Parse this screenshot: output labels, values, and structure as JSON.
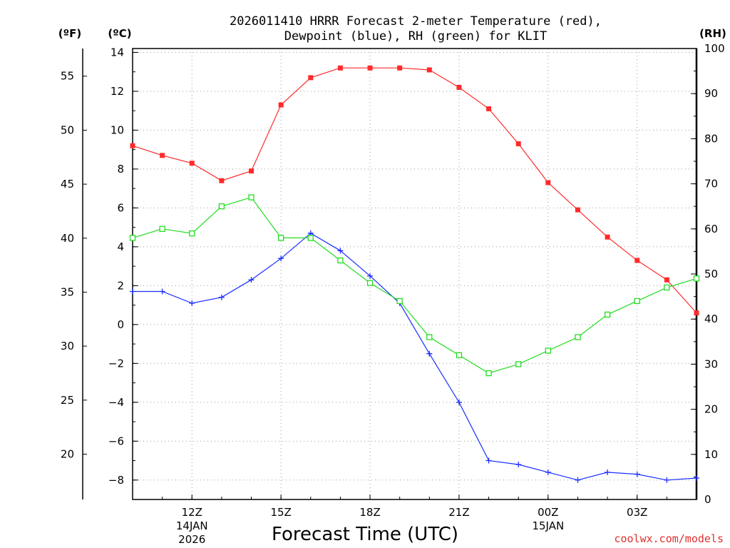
{
  "chart_data": {
    "type": "line",
    "title_line1": "2026011410 HRRR Forecast 2-meter Temperature (red),",
    "title_line2": "Dewpoint (blue), RH (green) for KLIT",
    "unit_f": "(ºF)",
    "unit_c": "(ºC)",
    "unit_rh": "(RH)",
    "xlabel": "Forecast Time (UTC)",
    "watermark": "coolwx.com/models",
    "hours": [
      10,
      11,
      12,
      13,
      14,
      15,
      16,
      17,
      18,
      19,
      20,
      21,
      22,
      23,
      24,
      25,
      26,
      27,
      28,
      29
    ],
    "xlim": [
      10,
      29
    ],
    "ylim_c": [
      -9,
      14.2
    ],
    "ylim_rh": [
      0,
      100
    ],
    "x_ticks": [
      {
        "hour": 12,
        "label": "12Z",
        "line2": "14JAN",
        "line3": "2026"
      },
      {
        "hour": 15,
        "label": "15Z"
      },
      {
        "hour": 18,
        "label": "18Z"
      },
      {
        "hour": 21,
        "label": "21Z"
      },
      {
        "hour": 24,
        "label": "00Z",
        "line2": "15JAN"
      },
      {
        "hour": 27,
        "label": "03Z"
      }
    ],
    "c_ticks": [
      14,
      12,
      10,
      8,
      6,
      4,
      2,
      0,
      -2,
      -4,
      -6,
      -8
    ],
    "c_tick_labels": [
      "14",
      "12",
      "10",
      "8",
      "6",
      "4",
      "2",
      "0",
      "−2",
      "−4",
      "−6",
      "−8"
    ],
    "f_ticks": [
      55,
      50,
      45,
      40,
      35,
      30,
      25,
      20
    ],
    "rh_ticks": [
      100,
      90,
      80,
      70,
      60,
      50,
      40,
      30,
      20,
      10,
      0
    ],
    "series": [
      {
        "name": "Temperature",
        "units": "C",
        "color": "#ff2a2a",
        "marker": "filled-square",
        "values": [
          9.2,
          8.7,
          8.3,
          7.4,
          7.9,
          11.3,
          12.7,
          13.2,
          13.2,
          13.2,
          13.1,
          12.2,
          11.1,
          9.3,
          7.3,
          5.9,
          4.5,
          3.3,
          2.3,
          0.6
        ]
      },
      {
        "name": "Dewpoint",
        "units": "C",
        "color": "#1a2eff",
        "marker": "plus",
        "values": [
          1.7,
          1.7,
          1.1,
          1.4,
          2.3,
          3.4,
          4.7,
          3.8,
          2.5,
          1.1,
          -1.5,
          -4.0,
          -7.0,
          -7.2,
          -7.6,
          -8.0,
          -7.6,
          -7.7,
          -8.0,
          -7.9
        ]
      },
      {
        "name": "RH",
        "units": "%",
        "color": "#22dd22",
        "marker": "open-square",
        "values": [
          58,
          60,
          59,
          65,
          67,
          58,
          58,
          53,
          48,
          44,
          36,
          32,
          28,
          30,
          33,
          36,
          41,
          44,
          47,
          49
        ]
      }
    ]
  }
}
